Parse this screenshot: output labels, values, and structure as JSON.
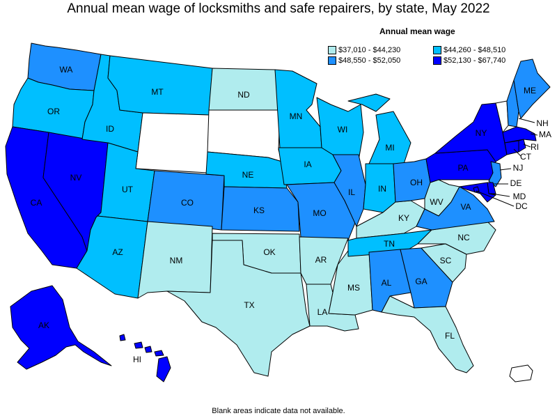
{
  "title": "Annual mean wage of locksmiths and safe repairers, by state, May 2022",
  "legend": {
    "title": "Annual mean wage",
    "items": [
      {
        "label": "$37,010 - $44,230",
        "color": "#b0ecee"
      },
      {
        "label": "$44,260 - $48,510",
        "color": "#00bfff"
      },
      {
        "label": "$48,550 - $52,050",
        "color": "#1e90ff"
      },
      {
        "label": "$52,130 - $67,740",
        "color": "#0000ff"
      }
    ]
  },
  "footnote": "Blank areas indicate data not available.",
  "no_data_color": "#ffffff",
  "states": {
    "WA": 2,
    "OR": 1,
    "CA": 3,
    "NV": 3,
    "ID": 1,
    "MT": 1,
    "WY": -1,
    "UT": 1,
    "AZ": 1,
    "CO": 2,
    "NM": 0,
    "ND": 0,
    "SD": -1,
    "NE": 1,
    "KS": 2,
    "OK": 0,
    "TX": 0,
    "MN": 1,
    "IA": 1,
    "MO": 2,
    "AR": 0,
    "LA": 0,
    "WI": 1,
    "IL": 2,
    "MS": 0,
    "MI": 1,
    "IN": 1,
    "KY": 0,
    "TN": 1,
    "AL": 2,
    "GA": 2,
    "FL": 0,
    "SC": 0,
    "NC": 0,
    "OH": 2,
    "WV": 0,
    "VA": 2,
    "PA": 3,
    "NY": 3,
    "VT": -1,
    "NH": 2,
    "ME": 2,
    "MA": 3,
    "RI": 3,
    "CT": 3,
    "NJ": 2,
    "DE": 3,
    "MD": 3,
    "DC": 3,
    "AK": 3,
    "HI": 3,
    "PR": -1
  }
}
